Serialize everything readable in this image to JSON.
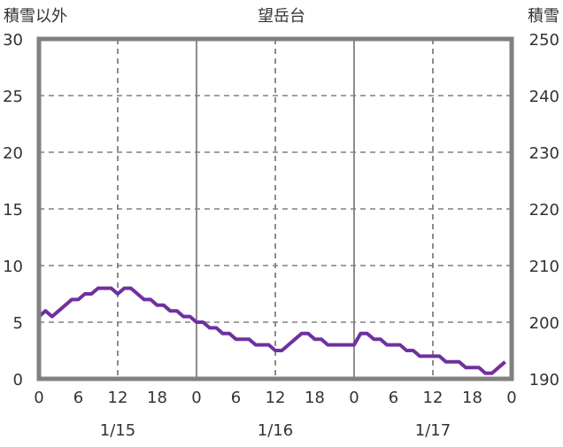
{
  "chart_data": {
    "type": "line",
    "title": "望岳台",
    "ylabel_left": "積雪以外",
    "ylabel_right": "積雪",
    "ylim_left": [
      0,
      30
    ],
    "ylim_right": [
      190,
      250
    ],
    "yticks_left": [
      "0",
      "5",
      "10",
      "15",
      "20",
      "25",
      "30"
    ],
    "yticks_right": [
      "190",
      "200",
      "210",
      "220",
      "230",
      "240",
      "250"
    ],
    "xlim_hours": [
      0,
      72
    ],
    "xtick_labels": [
      "0",
      "6",
      "12",
      "18",
      "0",
      "6",
      "12",
      "18",
      "0",
      "6",
      "12",
      "18",
      "0"
    ],
    "date_labels": [
      "1/15",
      "1/16",
      "1/17"
    ],
    "grid": true,
    "series": [
      {
        "name": "積雪以外",
        "axis": "left",
        "color": "#7030A0",
        "x_hours_step": 1,
        "values": [
          5.5,
          6,
          5.5,
          6,
          6.5,
          7,
          7,
          7.5,
          7.5,
          8,
          8,
          8,
          7.5,
          8,
          8,
          7.5,
          7,
          7,
          6.5,
          6.5,
          6,
          6,
          5.5,
          5.5,
          5,
          5,
          4.5,
          4.5,
          4,
          4,
          3.5,
          3.5,
          3.5,
          3,
          3,
          3,
          2.5,
          2.5,
          3,
          3.5,
          4,
          4,
          3.5,
          3.5,
          3,
          3,
          3,
          3,
          3,
          4,
          4,
          3.5,
          3.5,
          3,
          3,
          3,
          2.5,
          2.5,
          2,
          2,
          2,
          2,
          1.5,
          1.5,
          1.5,
          1,
          1,
          1,
          0.5,
          0.5,
          1,
          1.5
        ]
      }
    ]
  }
}
